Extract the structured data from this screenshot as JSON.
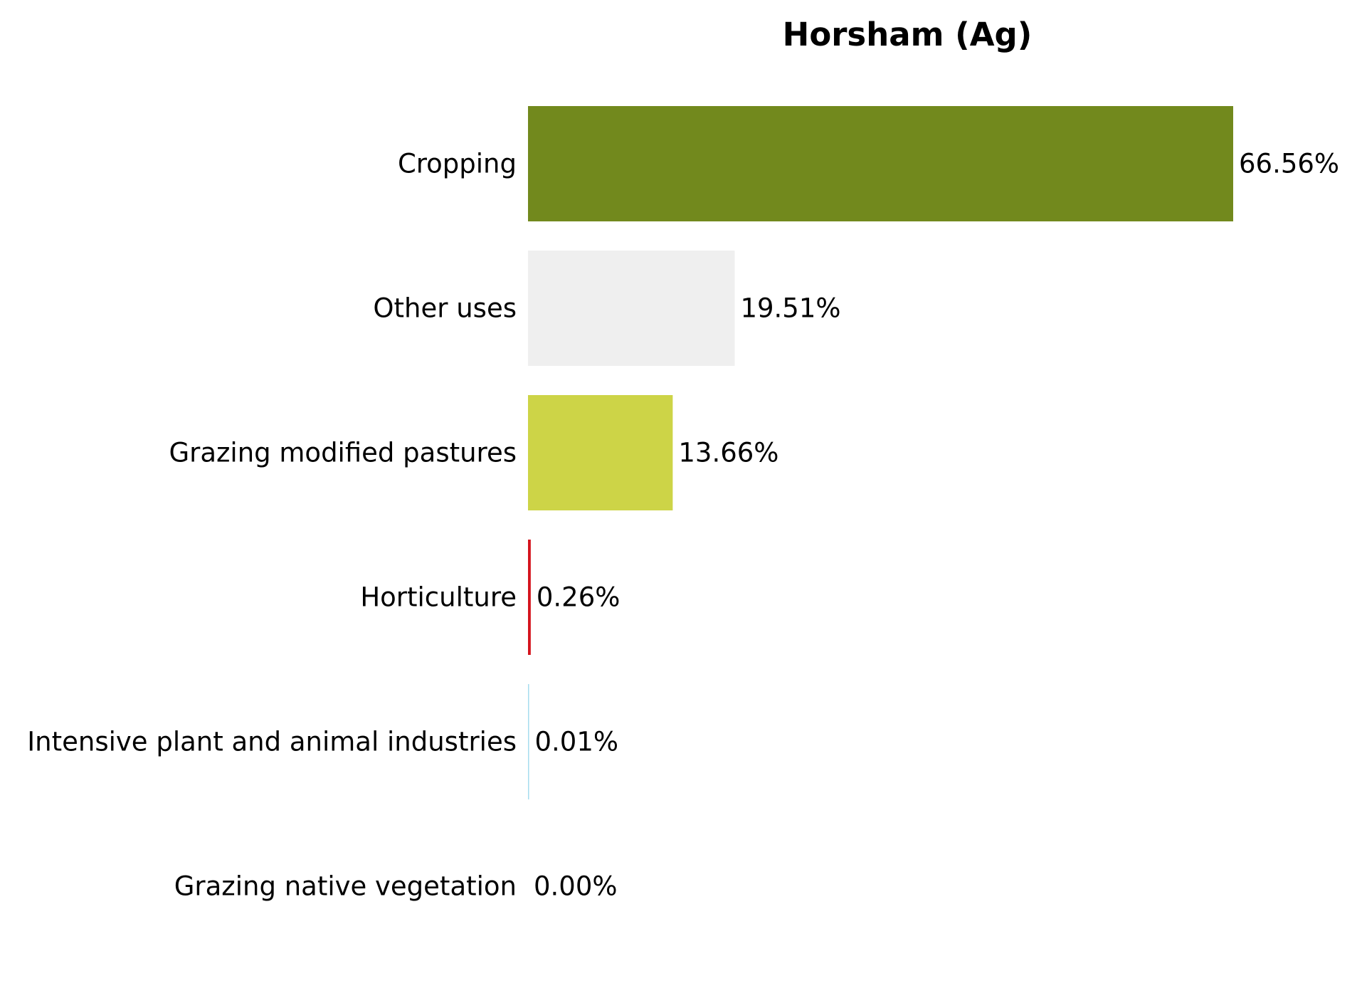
{
  "chart_data": {
    "type": "bar",
    "orientation": "horizontal",
    "title": "Horsham (Ag)",
    "xlabel": "",
    "ylabel": "",
    "categories": [
      "Cropping",
      "Other uses",
      "Grazing modified pastures",
      "Horticulture",
      "Intensive plant and animal industries",
      "Grazing native vegetation"
    ],
    "values": [
      66.56,
      19.51,
      13.66,
      0.26,
      0.01,
      0.0
    ],
    "value_labels": [
      "66.56%",
      "19.51%",
      "13.66%",
      "0.26%",
      "0.01%",
      "0.00%"
    ],
    "colors": [
      "#72891d",
      "#efefef",
      "#cdd447",
      "#d4141d",
      "#a6dcef",
      "#d8e4a6"
    ],
    "xlim": [
      0,
      66.56
    ],
    "grid": false,
    "legend": "none"
  }
}
